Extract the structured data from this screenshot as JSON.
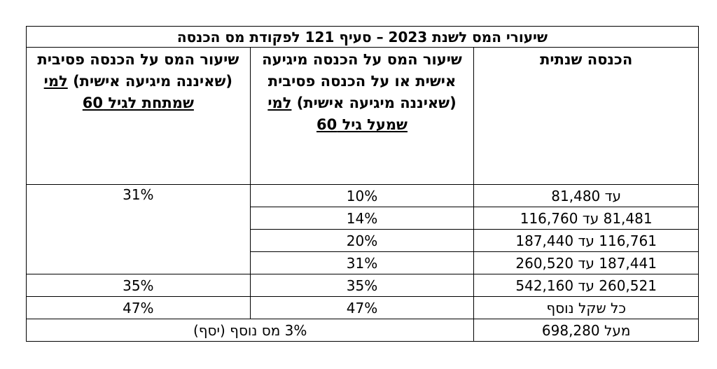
{
  "title": "שיעורי המס לשנת 2023 – סעיף 121 לפקודת מס הכנסה",
  "headers": {
    "income": "הכנסה שנתית",
    "over60_pre": "שיעור המס על הכנסה מיגיעה אישית או על הכנסה פסיבית (שאיננה מיגיעה אישית)",
    "over60_u": "למי שמעל גיל 60",
    "under60_pre": "שיעור המס על הכנסה פסיבית (שאיננה מיגיעה אישית)",
    "under60_u": "למי שמתחת לגיל 60"
  },
  "rows": [
    {
      "income": "עד 81,480",
      "personal": "10%"
    },
    {
      "income": "81,481 עד 116,760",
      "personal": "14%"
    },
    {
      "income": "116,761 עד 187,440",
      "personal": "20%"
    },
    {
      "income": "187,441 עד 260,520",
      "personal": "31%"
    },
    {
      "income": "260,521 עד 542,160",
      "personal": "35%"
    },
    {
      "income": "כל שקל נוסף",
      "personal": "47%"
    }
  ],
  "passive": {
    "first_block": "31%",
    "row5": "35%",
    "row6": "47%"
  },
  "surtax": {
    "income": "מעל 698,280",
    "rate": "3% מס נוסף (יסף)"
  }
}
